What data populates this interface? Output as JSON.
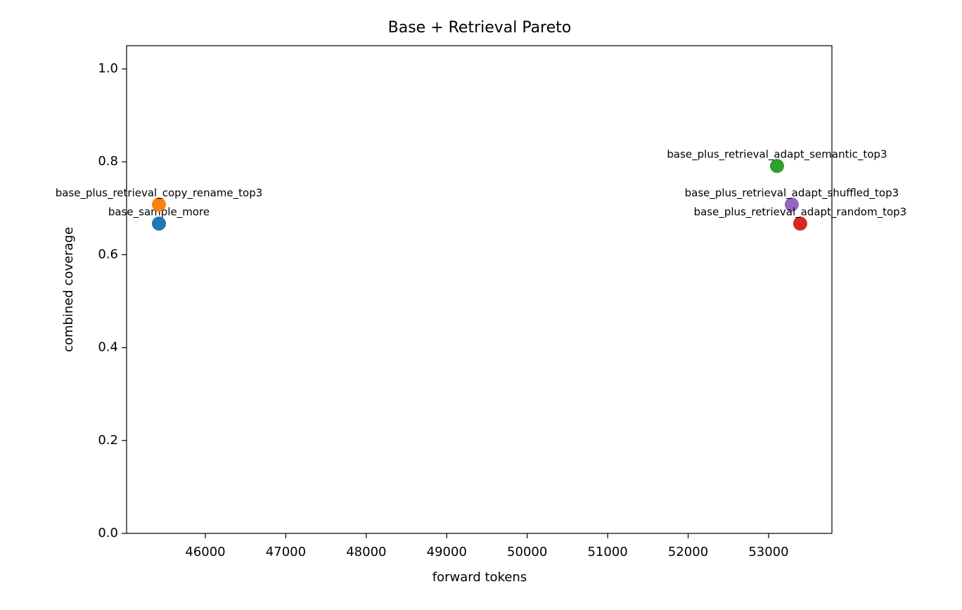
{
  "chart_data": {
    "type": "scatter",
    "title": "Base + Retrieval Pareto",
    "x_label": "forward tokens",
    "y_label": "combined coverage",
    "xlim": [
      45021,
      53787
    ],
    "ylim": [
      0,
      1.05
    ],
    "xticks": [
      46000,
      47000,
      48000,
      49000,
      50000,
      51000,
      52000,
      53000
    ],
    "yticks": [
      {
        "value": 0,
        "label": "0.0"
      },
      0.2,
      0.4,
      0.6,
      0.8,
      {
        "value": 1,
        "label": "1.0"
      }
    ],
    "series": [
      {
        "name": "base_sample_more",
        "color": "#1f77b4",
        "x": [
          45423
        ],
        "values": [
          0.667
        ]
      },
      {
        "name": "base_plus_retrieval_copy_rename_top3",
        "color": "#ff7f0e",
        "x": [
          45423
        ],
        "values": [
          0.708
        ]
      },
      {
        "name": "base_plus_retrieval_adapt_semantic_top3",
        "color": "#2ca02c",
        "x": [
          53105
        ],
        "values": [
          0.791
        ]
      },
      {
        "name": "base_plus_retrieval_adapt_shuffled_top3",
        "color": "#9467bd",
        "x": [
          53288
        ],
        "values": [
          0.708
        ]
      },
      {
        "name": "base_plus_retrieval_adapt_random_top3",
        "color": "#d62728",
        "x": [
          53393
        ],
        "values": [
          0.667
        ]
      }
    ]
  }
}
